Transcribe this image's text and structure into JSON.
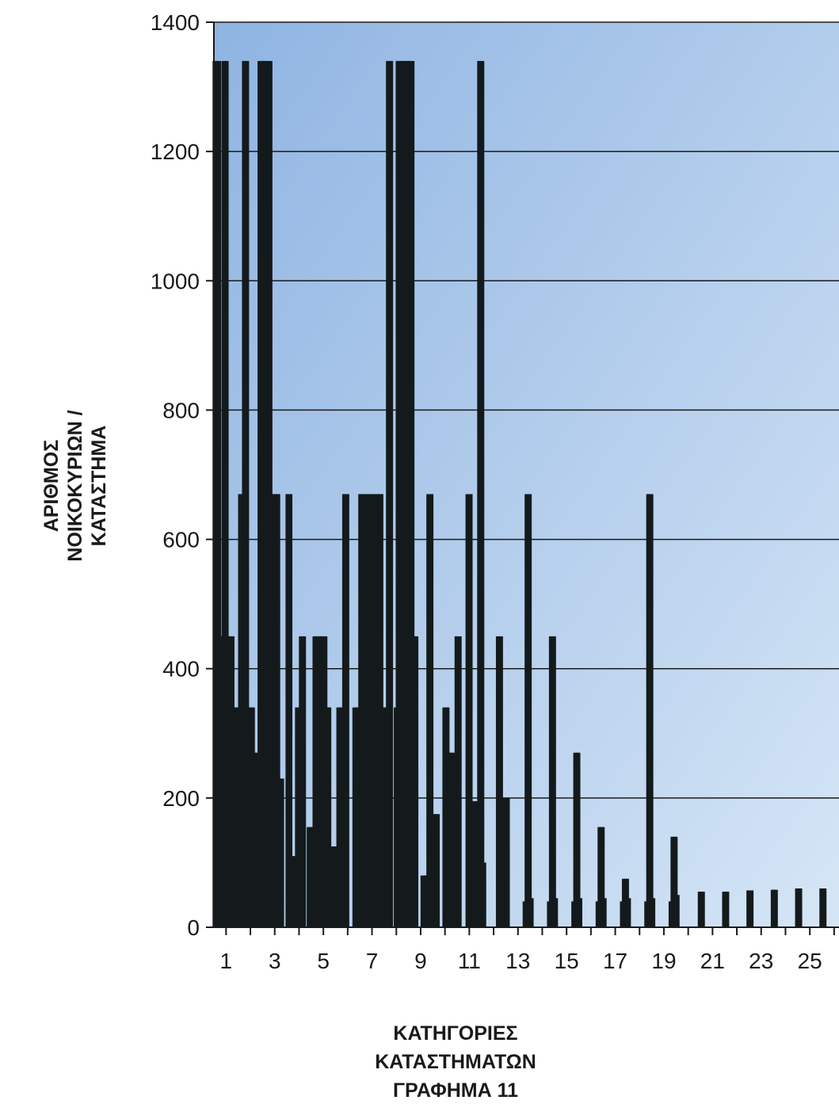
{
  "chart_data": {
    "type": "bar",
    "ylabel_lines": [
      "ΑΡΙΘΜΟΣ",
      "ΝΟΙΚΟΚΥΡΙΩΝ /",
      "ΚΑΤΑΣΤΗΜΑ"
    ],
    "xlabel_lines": [
      "ΚΑΤΗΓΟΡΙΕΣ",
      "ΚΑΤΑΣΤΗΜΑΤΩΝ"
    ],
    "caption": "ΓΡΑΦΗΜΑ 11",
    "ylim": [
      0,
      1400
    ],
    "xlim": [
      0.5,
      26.2
    ],
    "y_ticks": [
      0,
      200,
      400,
      600,
      800,
      1000,
      1200,
      1400
    ],
    "x_ticks": [
      "1",
      "3",
      "5",
      "7",
      "9",
      "11",
      "13",
      "15",
      "17",
      "19",
      "21",
      "23",
      "25"
    ],
    "grid": true,
    "colors": {
      "bar": "#141a1c",
      "plot_top": "#8fb4e2",
      "plot_bottom": "#d6e6f6",
      "grid": "#1a1a1a"
    },
    "bars": [
      {
        "x": 0.55,
        "y": 1340
      },
      {
        "x": 0.62,
        "y": 1340
      },
      {
        "x": 0.7,
        "y": 1340
      },
      {
        "x": 0.78,
        "y": 450
      },
      {
        "x": 0.86,
        "y": 450
      },
      {
        "x": 0.93,
        "y": 1340
      },
      {
        "x": 1.0,
        "y": 1340
      },
      {
        "x": 1.08,
        "y": 450
      },
      {
        "x": 1.16,
        "y": 450
      },
      {
        "x": 1.24,
        "y": 450
      },
      {
        "x": 1.32,
        "y": 340
      },
      {
        "x": 1.4,
        "y": 340
      },
      {
        "x": 1.48,
        "y": 340
      },
      {
        "x": 1.6,
        "y": 670
      },
      {
        "x": 1.68,
        "y": 670
      },
      {
        "x": 1.76,
        "y": 1340
      },
      {
        "x": 1.84,
        "y": 1340
      },
      {
        "x": 1.92,
        "y": 340
      },
      {
        "x": 2.0,
        "y": 340
      },
      {
        "x": 2.08,
        "y": 340
      },
      {
        "x": 2.16,
        "y": 270
      },
      {
        "x": 2.24,
        "y": 270
      },
      {
        "x": 2.4,
        "y": 1340
      },
      {
        "x": 2.48,
        "y": 1340
      },
      {
        "x": 2.56,
        "y": 1340
      },
      {
        "x": 2.64,
        "y": 1340
      },
      {
        "x": 2.72,
        "y": 1340
      },
      {
        "x": 2.8,
        "y": 1340
      },
      {
        "x": 2.88,
        "y": 670
      },
      {
        "x": 2.96,
        "y": 670
      },
      {
        "x": 3.04,
        "y": 670
      },
      {
        "x": 3.12,
        "y": 670
      },
      {
        "x": 3.2,
        "y": 230
      },
      {
        "x": 3.28,
        "y": 230
      },
      {
        "x": 3.55,
        "y": 670
      },
      {
        "x": 3.62,
        "y": 670
      },
      {
        "x": 3.7,
        "y": 110
      },
      {
        "x": 3.78,
        "y": 110
      },
      {
        "x": 3.86,
        "y": 110
      },
      {
        "x": 3.94,
        "y": 340
      },
      {
        "x": 4.02,
        "y": 340
      },
      {
        "x": 4.1,
        "y": 450
      },
      {
        "x": 4.18,
        "y": 450
      },
      {
        "x": 4.42,
        "y": 155
      },
      {
        "x": 4.5,
        "y": 155
      },
      {
        "x": 4.58,
        "y": 155
      },
      {
        "x": 4.66,
        "y": 450
      },
      {
        "x": 4.74,
        "y": 450
      },
      {
        "x": 4.82,
        "y": 450
      },
      {
        "x": 4.9,
        "y": 450
      },
      {
        "x": 4.98,
        "y": 450
      },
      {
        "x": 5.06,
        "y": 450
      },
      {
        "x": 5.14,
        "y": 340
      },
      {
        "x": 5.22,
        "y": 340
      },
      {
        "x": 5.4,
        "y": 125
      },
      {
        "x": 5.48,
        "y": 125
      },
      {
        "x": 5.56,
        "y": 125
      },
      {
        "x": 5.64,
        "y": 340
      },
      {
        "x": 5.72,
        "y": 340
      },
      {
        "x": 5.8,
        "y": 140
      },
      {
        "x": 5.88,
        "y": 670
      },
      {
        "x": 5.96,
        "y": 670
      },
      {
        "x": 6.3,
        "y": 340
      },
      {
        "x": 6.38,
        "y": 340
      },
      {
        "x": 6.46,
        "y": 340
      },
      {
        "x": 6.54,
        "y": 670
      },
      {
        "x": 6.62,
        "y": 670
      },
      {
        "x": 6.7,
        "y": 270
      },
      {
        "x": 6.78,
        "y": 670
      },
      {
        "x": 6.86,
        "y": 670
      },
      {
        "x": 6.94,
        "y": 670
      },
      {
        "x": 7.02,
        "y": 670
      },
      {
        "x": 7.2,
        "y": 670
      },
      {
        "x": 7.28,
        "y": 670
      },
      {
        "x": 7.36,
        "y": 670
      },
      {
        "x": 7.44,
        "y": 340
      },
      {
        "x": 7.52,
        "y": 340
      },
      {
        "x": 7.6,
        "y": 340
      },
      {
        "x": 7.68,
        "y": 1340
      },
      {
        "x": 7.76,
        "y": 1340
      },
      {
        "x": 8.0,
        "y": 340
      },
      {
        "x": 8.08,
        "y": 1340
      },
      {
        "x": 8.16,
        "y": 1340
      },
      {
        "x": 8.24,
        "y": 1340
      },
      {
        "x": 8.32,
        "y": 1340
      },
      {
        "x": 8.4,
        "y": 1340
      },
      {
        "x": 8.48,
        "y": 1340
      },
      {
        "x": 8.56,
        "y": 1340
      },
      {
        "x": 8.64,
        "y": 1340
      },
      {
        "x": 8.72,
        "y": 450
      },
      {
        "x": 8.8,
        "y": 450
      },
      {
        "x": 9.1,
        "y": 80
      },
      {
        "x": 9.18,
        "y": 80
      },
      {
        "x": 9.26,
        "y": 80
      },
      {
        "x": 9.34,
        "y": 670
      },
      {
        "x": 9.42,
        "y": 670
      },
      {
        "x": 9.5,
        "y": 90
      },
      {
        "x": 9.6,
        "y": 175
      },
      {
        "x": 9.68,
        "y": 175
      },
      {
        "x": 10.0,
        "y": 340
      },
      {
        "x": 10.08,
        "y": 340
      },
      {
        "x": 10.16,
        "y": 270
      },
      {
        "x": 10.24,
        "y": 270
      },
      {
        "x": 10.32,
        "y": 270
      },
      {
        "x": 10.5,
        "y": 450
      },
      {
        "x": 10.58,
        "y": 450
      },
      {
        "x": 10.95,
        "y": 670
      },
      {
        "x": 11.03,
        "y": 670
      },
      {
        "x": 11.11,
        "y": 195
      },
      {
        "x": 11.19,
        "y": 195
      },
      {
        "x": 11.27,
        "y": 195
      },
      {
        "x": 11.35,
        "y": 105
      },
      {
        "x": 11.43,
        "y": 1340
      },
      {
        "x": 11.51,
        "y": 1340
      },
      {
        "x": 11.59,
        "y": 100
      },
      {
        "x": 12.2,
        "y": 450
      },
      {
        "x": 12.28,
        "y": 450
      },
      {
        "x": 12.4,
        "y": 200
      },
      {
        "x": 12.48,
        "y": 200
      },
      {
        "x": 12.56,
        "y": 200
      },
      {
        "x": 13.3,
        "y": 40
      },
      {
        "x": 13.38,
        "y": 670
      },
      {
        "x": 13.46,
        "y": 670
      },
      {
        "x": 13.54,
        "y": 45
      },
      {
        "x": 14.3,
        "y": 40
      },
      {
        "x": 14.38,
        "y": 450
      },
      {
        "x": 14.46,
        "y": 450
      },
      {
        "x": 14.54,
        "y": 45
      },
      {
        "x": 15.3,
        "y": 40
      },
      {
        "x": 15.38,
        "y": 270
      },
      {
        "x": 15.46,
        "y": 270
      },
      {
        "x": 15.54,
        "y": 45
      },
      {
        "x": 16.3,
        "y": 40
      },
      {
        "x": 16.38,
        "y": 155
      },
      {
        "x": 16.46,
        "y": 155
      },
      {
        "x": 16.54,
        "y": 45
      },
      {
        "x": 17.3,
        "y": 40
      },
      {
        "x": 17.38,
        "y": 75
      },
      {
        "x": 17.46,
        "y": 75
      },
      {
        "x": 17.54,
        "y": 45
      },
      {
        "x": 18.3,
        "y": 40
      },
      {
        "x": 18.38,
        "y": 670
      },
      {
        "x": 18.46,
        "y": 670
      },
      {
        "x": 18.54,
        "y": 45
      },
      {
        "x": 19.3,
        "y": 40
      },
      {
        "x": 19.38,
        "y": 140
      },
      {
        "x": 19.46,
        "y": 140
      },
      {
        "x": 19.54,
        "y": 50
      },
      {
        "x": 20.5,
        "y": 55
      },
      {
        "x": 20.58,
        "y": 55
      },
      {
        "x": 21.5,
        "y": 55
      },
      {
        "x": 21.58,
        "y": 55
      },
      {
        "x": 22.5,
        "y": 57
      },
      {
        "x": 22.58,
        "y": 57
      },
      {
        "x": 23.5,
        "y": 58
      },
      {
        "x": 23.58,
        "y": 58
      },
      {
        "x": 24.5,
        "y": 60
      },
      {
        "x": 24.58,
        "y": 60
      },
      {
        "x": 25.5,
        "y": 60
      },
      {
        "x": 25.58,
        "y": 60
      }
    ]
  }
}
